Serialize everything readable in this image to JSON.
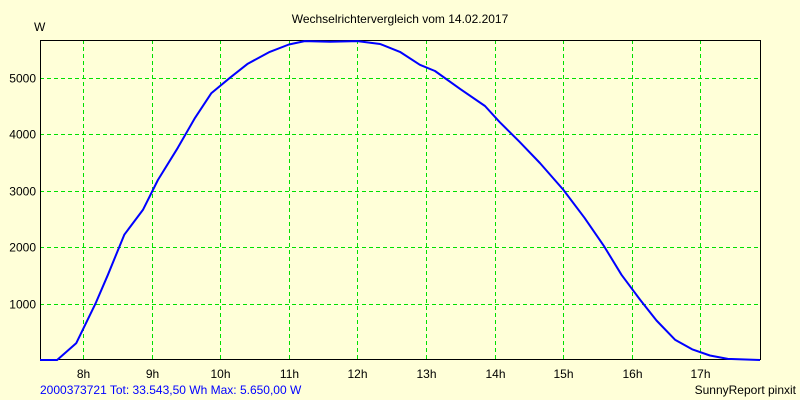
{
  "chart_data": {
    "type": "line",
    "title": "Wechselrichtervergleich vom 14.02.2017",
    "ylabel": "W",
    "xlabel": "",
    "xlim": [
      7.37,
      17.87
    ],
    "ylim": [
      0,
      5670
    ],
    "grid": true,
    "x_ticks": [
      8,
      9,
      10,
      11,
      12,
      13,
      14,
      15,
      16,
      17
    ],
    "x_tick_labels": [
      "8h",
      "9h",
      "10h",
      "11h",
      "12h",
      "13h",
      "14h",
      "15h",
      "16h",
      "17h"
    ],
    "y_ticks": [
      1000,
      2000,
      3000,
      4000,
      5000
    ],
    "y_tick_labels": [
      "1000",
      "2000",
      "3000",
      "4000",
      "5000"
    ],
    "series": [
      {
        "name": "2000373721",
        "color": "#0000ff",
        "x": [
          7.37,
          7.62,
          7.9,
          8.18,
          8.36,
          8.6,
          8.87,
          9.09,
          9.38,
          9.63,
          9.87,
          10.14,
          10.4,
          10.72,
          11.0,
          11.23,
          11.6,
          12.0,
          12.33,
          12.62,
          12.91,
          13.13,
          13.5,
          13.86,
          14.07,
          14.36,
          14.66,
          15.0,
          15.31,
          15.6,
          15.85,
          16.12,
          16.36,
          16.63,
          16.88,
          17.14,
          17.4,
          17.87
        ],
        "y": [
          0,
          0,
          300,
          1000,
          1510,
          2220,
          2660,
          3190,
          3760,
          4290,
          4730,
          5000,
          5250,
          5460,
          5590,
          5650,
          5640,
          5650,
          5600,
          5460,
          5230,
          5120,
          4800,
          4500,
          4220,
          3870,
          3490,
          3020,
          2520,
          2010,
          1510,
          1070,
          700,
          360,
          190,
          80,
          20,
          0
        ]
      }
    ],
    "footer_left_id": "2000373721",
    "footer_left_stats": "Tot: 33.543,50 Wh Max: 5.650,00 W",
    "footer_right": "SunnyReport pinxit",
    "colors": {
      "background": "#ffffd8",
      "grid": "#00e000",
      "line": "#0000ff"
    }
  }
}
